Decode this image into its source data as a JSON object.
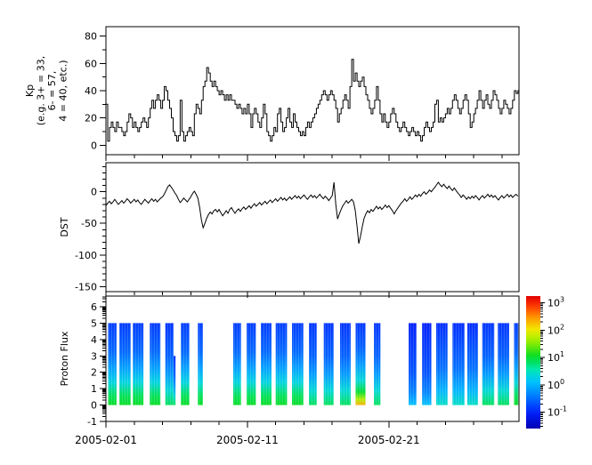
{
  "figure": {
    "background": "#ffffff",
    "axis_color": "#000000",
    "series_color": "#000000"
  },
  "x_axis": {
    "range_days": [
      0,
      29.2
    ],
    "major_tick_days": [
      0,
      10,
      20
    ],
    "minor_tick_days": [
      2,
      4,
      6,
      8,
      12,
      14,
      16,
      18,
      22,
      24,
      26,
      28
    ],
    "tick_labels": [
      "2005-02-01",
      "2005-02-11",
      "2005-02-21"
    ]
  },
  "chart_data": [
    {
      "type": "line",
      "name": "Kp",
      "style": "step",
      "ylabel_lines": [
        "Kp",
        "(e.g. 3+ = 33,",
        "6- = 57,",
        "4 = 40, etc.)"
      ],
      "ylim": [
        -7,
        87
      ],
      "yticks": [
        0,
        20,
        40,
        60,
        80
      ],
      "yticks_minor": [
        10,
        30,
        50,
        70
      ],
      "x_start_day": 0,
      "x_step_days": 0.125,
      "values": [
        30,
        3,
        13,
        17,
        13,
        10,
        17,
        13,
        13,
        10,
        7,
        10,
        17,
        23,
        20,
        13,
        17,
        13,
        10,
        13,
        17,
        20,
        17,
        13,
        20,
        27,
        33,
        27,
        33,
        37,
        33,
        27,
        33,
        43,
        40,
        33,
        27,
        20,
        10,
        7,
        3,
        7,
        33,
        10,
        3,
        7,
        10,
        13,
        10,
        7,
        23,
        30,
        27,
        23,
        33,
        43,
        47,
        57,
        53,
        47,
        43,
        47,
        43,
        40,
        37,
        40,
        37,
        33,
        37,
        33,
        37,
        33,
        33,
        30,
        27,
        30,
        27,
        23,
        27,
        23,
        30,
        23,
        13,
        23,
        27,
        23,
        17,
        13,
        20,
        30,
        23,
        10,
        7,
        3,
        7,
        13,
        10,
        23,
        27,
        17,
        10,
        13,
        20,
        27,
        17,
        13,
        23,
        17,
        13,
        10,
        7,
        10,
        7,
        13,
        17,
        13,
        17,
        20,
        23,
        27,
        30,
        33,
        37,
        40,
        37,
        33,
        37,
        40,
        37,
        33,
        27,
        17,
        23,
        27,
        33,
        37,
        33,
        27,
        43,
        63,
        47,
        53,
        47,
        43,
        47,
        50,
        43,
        37,
        33,
        27,
        23,
        27,
        33,
        43,
        33,
        23,
        17,
        23,
        17,
        13,
        17,
        23,
        27,
        23,
        17,
        13,
        10,
        13,
        17,
        13,
        10,
        7,
        10,
        13,
        10,
        7,
        10,
        7,
        3,
        7,
        13,
        17,
        13,
        10,
        13,
        17,
        30,
        33,
        17,
        20,
        17,
        20,
        23,
        27,
        23,
        27,
        33,
        37,
        33,
        27,
        23,
        27,
        33,
        37,
        33,
        23,
        13,
        17,
        23,
        27,
        33,
        40,
        33,
        27,
        33,
        37,
        30,
        27,
        33,
        40,
        37,
        33,
        27,
        23,
        27,
        33,
        30,
        27,
        23,
        27,
        33,
        40,
        38,
        40
      ]
    },
    {
      "type": "line",
      "name": "DST",
      "style": "linear",
      "ylabel_lines": [
        "DST"
      ],
      "ylim": [
        -158,
        46
      ],
      "yticks": [
        0,
        -50,
        -100,
        -150
      ],
      "yticks_minor": [
        40,
        30,
        20,
        10,
        -10,
        -20,
        -30,
        -40,
        -60,
        -70,
        -80,
        -90,
        -110,
        -120,
        -130,
        -140
      ],
      "x_start_day": 0,
      "x_step_days": 0.125,
      "values": [
        -22,
        -18,
        -15,
        -19,
        -16,
        -12,
        -16,
        -20,
        -17,
        -14,
        -18,
        -15,
        -11,
        -14,
        -18,
        -15,
        -12,
        -16,
        -13,
        -17,
        -20,
        -16,
        -12,
        -15,
        -18,
        -14,
        -11,
        -15,
        -12,
        -16,
        -13,
        -10,
        -8,
        -4,
        2,
        8,
        11,
        7,
        3,
        -2,
        -6,
        -12,
        -17,
        -14,
        -10,
        -13,
        -16,
        -12,
        -8,
        -3,
        1,
        -4,
        -10,
        -25,
        -45,
        -57,
        -50,
        -42,
        -36,
        -32,
        -35,
        -30,
        -28,
        -32,
        -28,
        -33,
        -38,
        -34,
        -30,
        -34,
        -28,
        -25,
        -30,
        -34,
        -30,
        -27,
        -31,
        -27,
        -24,
        -28,
        -25,
        -22,
        -26,
        -22,
        -19,
        -23,
        -20,
        -17,
        -21,
        -18,
        -15,
        -19,
        -16,
        -13,
        -17,
        -14,
        -11,
        -15,
        -12,
        -9,
        -13,
        -10,
        -14,
        -11,
        -8,
        -12,
        -9,
        -6,
        -10,
        -7,
        -11,
        -8,
        -5,
        -9,
        -12,
        -8,
        -5,
        -9,
        -6,
        -10,
        -7,
        -4,
        -8,
        -11,
        -7,
        -10,
        -14,
        -10,
        -6,
        15,
        -20,
        -43,
        -35,
        -28,
        -22,
        -18,
        -14,
        -18,
        -15,
        -12,
        -16,
        -30,
        -55,
        -82,
        -70,
        -55,
        -42,
        -35,
        -30,
        -33,
        -28,
        -31,
        -27,
        -23,
        -27,
        -24,
        -28,
        -25,
        -21,
        -25,
        -22,
        -26,
        -30,
        -35,
        -30,
        -26,
        -22,
        -18,
        -15,
        -11,
        -15,
        -12,
        -8,
        -12,
        -9,
        -5,
        -8,
        -4,
        -7,
        -3,
        0,
        -4,
        -1,
        3,
        0,
        4,
        7,
        11,
        15,
        11,
        8,
        12,
        8,
        5,
        9,
        5,
        2,
        6,
        2,
        -2,
        -5,
        -9,
        -5,
        -8,
        -12,
        -8,
        -11,
        -7,
        -10,
        -6,
        -9,
        -13,
        -9,
        -6,
        -10,
        -7,
        -4,
        -8,
        -5,
        -9,
        -6,
        -10,
        -13,
        -9,
        -6,
        -10,
        -7,
        -4,
        -8,
        -5,
        -9,
        -6,
        -4,
        -7
      ]
    },
    {
      "type": "heatmap",
      "name": "Proton Flux",
      "ylabel_lines": [
        "Proton Flux"
      ],
      "ylim": [
        -1,
        6.65
      ],
      "yticks": [
        -1,
        0,
        1,
        2,
        3,
        4,
        5,
        6
      ],
      "yticks_minor": "log",
      "bar_bottom": 0,
      "bar_top": 5,
      "profiles": {
        "strong": [
          [
            0,
            1.05
          ],
          [
            0.12,
            0.85
          ],
          [
            0.28,
            0.3
          ],
          [
            0.45,
            -0.15
          ],
          [
            0.65,
            -0.55
          ],
          [
            1,
            -0.85
          ]
        ],
        "medium": [
          [
            0,
            0.85
          ],
          [
            0.18,
            0.35
          ],
          [
            0.38,
            -0.2
          ],
          [
            0.6,
            -0.6
          ],
          [
            1,
            -0.9
          ]
        ],
        "weakmed": [
          [
            0,
            0.45
          ],
          [
            0.18,
            0.0
          ],
          [
            0.45,
            -0.5
          ],
          [
            1,
            -0.95
          ]
        ],
        "weak": [
          [
            0,
            0.1
          ],
          [
            0.15,
            -0.35
          ],
          [
            0.4,
            -0.7
          ],
          [
            1,
            -1.05
          ]
        ],
        "hot": [
          [
            0,
            2.35
          ],
          [
            0.07,
            1.7
          ],
          [
            0.16,
            1.0
          ],
          [
            0.3,
            0.35
          ],
          [
            0.5,
            -0.2
          ],
          [
            0.7,
            -0.6
          ],
          [
            1,
            -0.9
          ]
        ]
      },
      "bars": [
        {
          "start": 0.15,
          "end": 0.75,
          "profile": "strong"
        },
        {
          "start": 0.95,
          "end": 1.75,
          "profile": "strong"
        },
        {
          "start": 1.9,
          "end": 2.65,
          "profile": "strong"
        },
        {
          "start": 3.1,
          "end": 3.85,
          "profile": "strong"
        },
        {
          "start": 4.2,
          "end": 4.78,
          "profile": "medium"
        },
        {
          "start": 4.78,
          "end": 4.92,
          "profile": "medium",
          "top": 3
        },
        {
          "start": 5.3,
          "end": 5.9,
          "profile": "strong"
        },
        {
          "start": 6.5,
          "end": 6.85,
          "profile": "strong"
        },
        {
          "start": 9.0,
          "end": 9.55,
          "profile": "strong"
        },
        {
          "start": 9.95,
          "end": 10.6,
          "profile": "strong"
        },
        {
          "start": 10.95,
          "end": 11.7,
          "profile": "strong"
        },
        {
          "start": 12.0,
          "end": 12.8,
          "profile": "strong"
        },
        {
          "start": 13.15,
          "end": 13.95,
          "profile": "strong"
        },
        {
          "start": 14.35,
          "end": 14.9,
          "profile": "medium"
        },
        {
          "start": 15.4,
          "end": 16.1,
          "profile": "medium"
        },
        {
          "start": 16.55,
          "end": 17.3,
          "profile": "medium"
        },
        {
          "start": 17.65,
          "end": 18.35,
          "profile": "hot"
        },
        {
          "start": 18.95,
          "end": 19.4,
          "profile": "medium"
        },
        {
          "start": 21.4,
          "end": 21.95,
          "profile": "weak"
        },
        {
          "start": 22.35,
          "end": 23.0,
          "profile": "weak"
        },
        {
          "start": 23.35,
          "end": 24.15,
          "profile": "weakmed"
        },
        {
          "start": 24.5,
          "end": 25.35,
          "profile": "weakmed"
        },
        {
          "start": 25.55,
          "end": 26.3,
          "profile": "weakmed"
        },
        {
          "start": 26.6,
          "end": 27.45,
          "profile": "medium"
        },
        {
          "start": 27.7,
          "end": 28.5,
          "profile": "medium"
        },
        {
          "start": 28.85,
          "end": 29.15,
          "profile": "strong"
        }
      ]
    }
  ],
  "colorbar": {
    "exponent_range": [
      -1.6,
      3.25
    ],
    "tick_exponents": [
      3,
      2,
      1,
      0,
      -1
    ],
    "tick_labels": [
      "10^3",
      "10^2",
      "10^1",
      "10^0",
      "10^-1"
    ],
    "colormap": [
      [
        0,
        "#0000b0"
      ],
      [
        0.12,
        "#0020ff"
      ],
      [
        0.25,
        "#0080ff"
      ],
      [
        0.36,
        "#00c8ff"
      ],
      [
        0.45,
        "#00e8aa"
      ],
      [
        0.54,
        "#00dc28"
      ],
      [
        0.64,
        "#82eb00"
      ],
      [
        0.74,
        "#f0f000"
      ],
      [
        0.84,
        "#ff9600"
      ],
      [
        0.93,
        "#ff3200"
      ],
      [
        1,
        "#e10000"
      ]
    ]
  }
}
